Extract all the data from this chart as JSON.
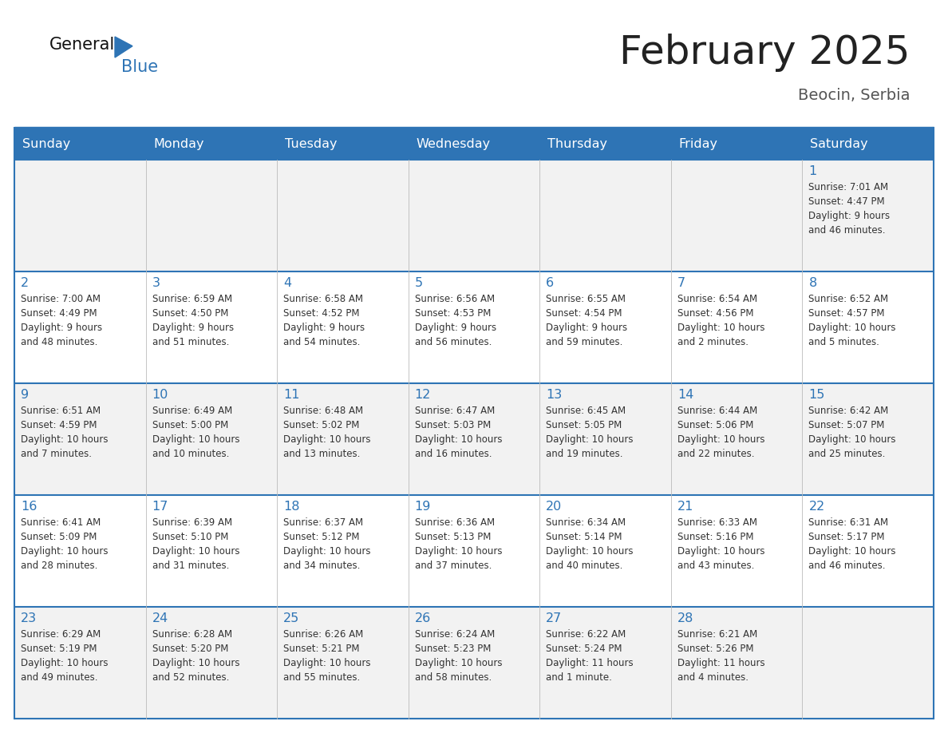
{
  "title": "February 2025",
  "subtitle": "Beocin, Serbia",
  "header_bg": "#2E74B5",
  "header_text_color": "#FFFFFF",
  "days_of_week": [
    "Sunday",
    "Monday",
    "Tuesday",
    "Wednesday",
    "Thursday",
    "Friday",
    "Saturday"
  ],
  "cell_bg": [
    "#F2F2F2",
    "#FFFFFF",
    "#F2F2F2",
    "#FFFFFF",
    "#F2F2F2"
  ],
  "row_border_color": "#2E74B5",
  "text_color": "#333333",
  "day_num_color": "#2E74B5",
  "title_color": "#222222",
  "subtitle_color": "#555555",
  "weeks": [
    [
      {
        "day": null,
        "info": null
      },
      {
        "day": null,
        "info": null
      },
      {
        "day": null,
        "info": null
      },
      {
        "day": null,
        "info": null
      },
      {
        "day": null,
        "info": null
      },
      {
        "day": null,
        "info": null
      },
      {
        "day": 1,
        "info": "Sunrise: 7:01 AM\nSunset: 4:47 PM\nDaylight: 9 hours\nand 46 minutes."
      }
    ],
    [
      {
        "day": 2,
        "info": "Sunrise: 7:00 AM\nSunset: 4:49 PM\nDaylight: 9 hours\nand 48 minutes."
      },
      {
        "day": 3,
        "info": "Sunrise: 6:59 AM\nSunset: 4:50 PM\nDaylight: 9 hours\nand 51 minutes."
      },
      {
        "day": 4,
        "info": "Sunrise: 6:58 AM\nSunset: 4:52 PM\nDaylight: 9 hours\nand 54 minutes."
      },
      {
        "day": 5,
        "info": "Sunrise: 6:56 AM\nSunset: 4:53 PM\nDaylight: 9 hours\nand 56 minutes."
      },
      {
        "day": 6,
        "info": "Sunrise: 6:55 AM\nSunset: 4:54 PM\nDaylight: 9 hours\nand 59 minutes."
      },
      {
        "day": 7,
        "info": "Sunrise: 6:54 AM\nSunset: 4:56 PM\nDaylight: 10 hours\nand 2 minutes."
      },
      {
        "day": 8,
        "info": "Sunrise: 6:52 AM\nSunset: 4:57 PM\nDaylight: 10 hours\nand 5 minutes."
      }
    ],
    [
      {
        "day": 9,
        "info": "Sunrise: 6:51 AM\nSunset: 4:59 PM\nDaylight: 10 hours\nand 7 minutes."
      },
      {
        "day": 10,
        "info": "Sunrise: 6:49 AM\nSunset: 5:00 PM\nDaylight: 10 hours\nand 10 minutes."
      },
      {
        "day": 11,
        "info": "Sunrise: 6:48 AM\nSunset: 5:02 PM\nDaylight: 10 hours\nand 13 minutes."
      },
      {
        "day": 12,
        "info": "Sunrise: 6:47 AM\nSunset: 5:03 PM\nDaylight: 10 hours\nand 16 minutes."
      },
      {
        "day": 13,
        "info": "Sunrise: 6:45 AM\nSunset: 5:05 PM\nDaylight: 10 hours\nand 19 minutes."
      },
      {
        "day": 14,
        "info": "Sunrise: 6:44 AM\nSunset: 5:06 PM\nDaylight: 10 hours\nand 22 minutes."
      },
      {
        "day": 15,
        "info": "Sunrise: 6:42 AM\nSunset: 5:07 PM\nDaylight: 10 hours\nand 25 minutes."
      }
    ],
    [
      {
        "day": 16,
        "info": "Sunrise: 6:41 AM\nSunset: 5:09 PM\nDaylight: 10 hours\nand 28 minutes."
      },
      {
        "day": 17,
        "info": "Sunrise: 6:39 AM\nSunset: 5:10 PM\nDaylight: 10 hours\nand 31 minutes."
      },
      {
        "day": 18,
        "info": "Sunrise: 6:37 AM\nSunset: 5:12 PM\nDaylight: 10 hours\nand 34 minutes."
      },
      {
        "day": 19,
        "info": "Sunrise: 6:36 AM\nSunset: 5:13 PM\nDaylight: 10 hours\nand 37 minutes."
      },
      {
        "day": 20,
        "info": "Sunrise: 6:34 AM\nSunset: 5:14 PM\nDaylight: 10 hours\nand 40 minutes."
      },
      {
        "day": 21,
        "info": "Sunrise: 6:33 AM\nSunset: 5:16 PM\nDaylight: 10 hours\nand 43 minutes."
      },
      {
        "day": 22,
        "info": "Sunrise: 6:31 AM\nSunset: 5:17 PM\nDaylight: 10 hours\nand 46 minutes."
      }
    ],
    [
      {
        "day": 23,
        "info": "Sunrise: 6:29 AM\nSunset: 5:19 PM\nDaylight: 10 hours\nand 49 minutes."
      },
      {
        "day": 24,
        "info": "Sunrise: 6:28 AM\nSunset: 5:20 PM\nDaylight: 10 hours\nand 52 minutes."
      },
      {
        "day": 25,
        "info": "Sunrise: 6:26 AM\nSunset: 5:21 PM\nDaylight: 10 hours\nand 55 minutes."
      },
      {
        "day": 26,
        "info": "Sunrise: 6:24 AM\nSunset: 5:23 PM\nDaylight: 10 hours\nand 58 minutes."
      },
      {
        "day": 27,
        "info": "Sunrise: 6:22 AM\nSunset: 5:24 PM\nDaylight: 11 hours\nand 1 minute."
      },
      {
        "day": 28,
        "info": "Sunrise: 6:21 AM\nSunset: 5:26 PM\nDaylight: 11 hours\nand 4 minutes."
      },
      {
        "day": null,
        "info": null
      }
    ]
  ]
}
